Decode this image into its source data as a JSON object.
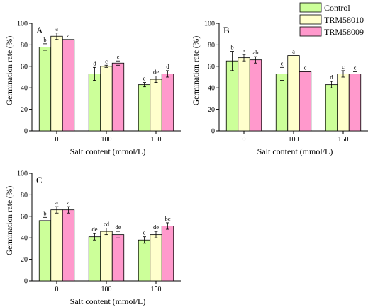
{
  "legend": {
    "placement": "top-right",
    "entries": [
      {
        "label": "Control",
        "color": "#ccff99"
      },
      {
        "label": "TRM58010",
        "color": "#ffffcc"
      },
      {
        "label": "TRM58009",
        "color": "#ff99cc"
      }
    ]
  },
  "chart_data": [
    {
      "type": "bar",
      "panel_label": "A",
      "xlabel": "Salt content (mmol/L)",
      "ylabel": "Germination rate (%)",
      "ylim": [
        0,
        100
      ],
      "yticks": [
        0,
        20,
        40,
        60,
        80,
        100
      ],
      "grid": false,
      "categories": [
        "0",
        "100",
        "150"
      ],
      "series": [
        {
          "name": "Control",
          "values": [
            78,
            53,
            43
          ],
          "errors": [
            3,
            6,
            2
          ],
          "letters": [
            "b",
            "d",
            "e"
          ]
        },
        {
          "name": "TRM58010",
          "values": [
            88,
            60,
            48
          ],
          "errors": [
            3,
            1,
            3
          ],
          "letters": [
            "a",
            "c",
            "de"
          ]
        },
        {
          "name": "TRM58009",
          "values": [
            85,
            63,
            53
          ],
          "errors": [
            0,
            2,
            3
          ],
          "letters": [
            "a",
            "c",
            "d"
          ]
        }
      ]
    },
    {
      "type": "bar",
      "panel_label": "B",
      "xlabel": "Salt content (mmol/L)",
      "ylabel": "Germination rate (%)",
      "ylim": [
        0,
        100
      ],
      "yticks": [
        0,
        20,
        40,
        60,
        80,
        100
      ],
      "grid": false,
      "categories": [
        "0",
        "100",
        "150"
      ],
      "series": [
        {
          "name": "Control",
          "values": [
            65,
            53,
            43
          ],
          "errors": [
            9,
            6,
            3
          ],
          "letters": [
            "b",
            "c",
            "d"
          ]
        },
        {
          "name": "TRM58010",
          "values": [
            68,
            70,
            53
          ],
          "errors": [
            3,
            0,
            3
          ],
          "letters": [
            "a",
            "a",
            "c"
          ]
        },
        {
          "name": "TRM58009",
          "values": [
            66,
            55,
            53
          ],
          "errors": [
            3,
            0,
            2
          ],
          "letters": [
            "ab",
            "c",
            "c"
          ]
        }
      ]
    },
    {
      "type": "bar",
      "panel_label": "C",
      "xlabel": "Salt content (mmol/L)",
      "ylabel": "Germination rate (%)",
      "ylim": [
        0,
        100
      ],
      "yticks": [
        0,
        20,
        40,
        60,
        80,
        100
      ],
      "grid": false,
      "categories": [
        "0",
        "100",
        "150"
      ],
      "series": [
        {
          "name": "Control",
          "values": [
            56,
            41,
            38
          ],
          "errors": [
            3,
            3,
            3
          ],
          "letters": [
            "b",
            "de",
            "e"
          ]
        },
        {
          "name": "TRM58010",
          "values": [
            66,
            46,
            43
          ],
          "errors": [
            3,
            3,
            3
          ],
          "letters": [
            "a",
            "cd",
            "de"
          ]
        },
        {
          "name": "TRM58009",
          "values": [
            66,
            43,
            51
          ],
          "errors": [
            3,
            3,
            3
          ],
          "letters": [
            "a",
            "de",
            "bc"
          ]
        }
      ]
    }
  ]
}
